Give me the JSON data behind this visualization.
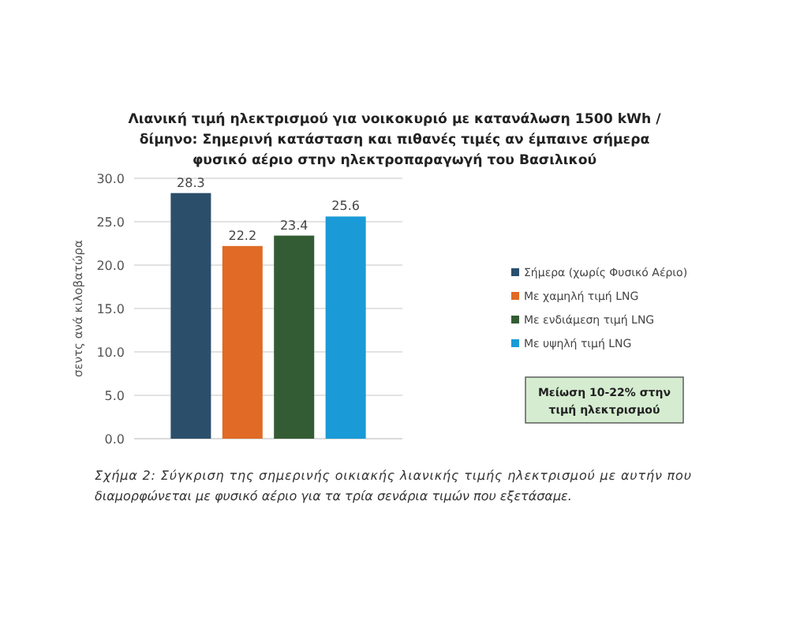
{
  "chart_data": {
    "type": "bar",
    "title": "Λιανική τιμή ηλεκτρισμού για νοικοκυριό με κατανάλωση 1500 kWh /\nδίμηνο: Σημερινή κατάσταση και πιθανές τιμές αν έμπαινε σήμερα\nφυσικό αέριο στην ηλεκτροπαραγωγή του Βασιλικού",
    "ylabel": "σεντς ανά κιλοβατώρα",
    "categories": [
      null
    ],
    "series": [
      {
        "name": "Σήμερα (χωρίς Φυσικό Αέριο)",
        "color": "#2b4f6b",
        "values": [
          28.3
        ]
      },
      {
        "name": "Με χαμηλή τιμή LNG",
        "color": "#e06a26",
        "values": [
          22.2
        ]
      },
      {
        "name": "Με ενδιάμεση τιμή LNG",
        "color": "#345c34",
        "values": [
          23.4
        ]
      },
      {
        "name": "Με υψηλή τιμή LNG",
        "color": "#1a9ad6",
        "values": [
          25.6
        ]
      }
    ],
    "ylim": [
      0,
      30
    ],
    "yticks": [
      {
        "value": 0,
        "label": "0.0"
      },
      {
        "value": 5,
        "label": "5.0"
      },
      {
        "value": 10,
        "label": "10.0"
      },
      {
        "value": 15,
        "label": "15.0"
      },
      {
        "value": 20,
        "label": "20.0"
      },
      {
        "value": 25,
        "label": "25.0"
      },
      {
        "value": 30,
        "label": "30.0"
      }
    ],
    "grid": "y",
    "legend": "right",
    "data_labels": true,
    "annotations": [
      "Μείωση 10-22% στην\nτιμή ηλεκτρισμού",
      "Σχήμα 2: Σύγκριση της σημερινής οικιακής λιανικής τιμής ηλεκτρισμού με αυτήν που\nδιαμορφώνεται με φυσικό αέριο για τα τρία σενάρια τιμών που εξετάσαμε."
    ]
  }
}
